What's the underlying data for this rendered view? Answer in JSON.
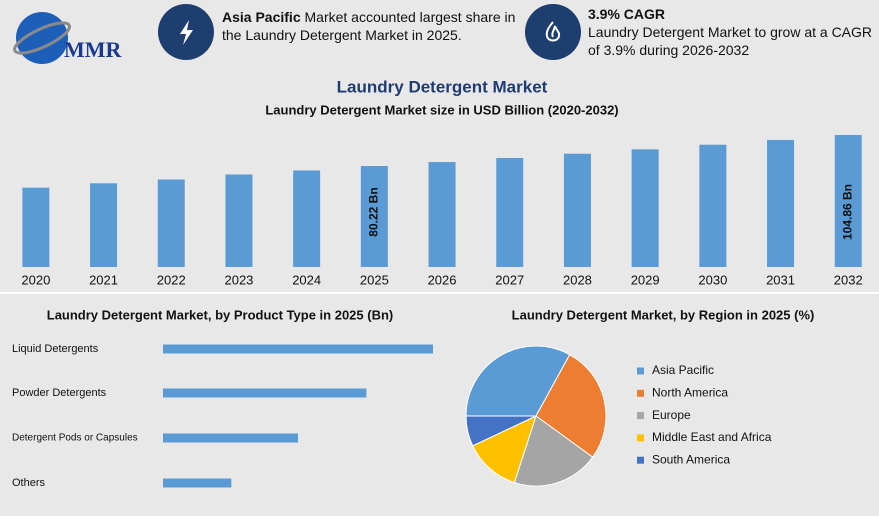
{
  "header": {
    "logo": "MMR",
    "box1": {
      "highlight": "Asia Pacific",
      "text": "Market accounted largest share in the Laundry Detergent Market in 2025."
    },
    "box2": {
      "title": "3.9% CAGR",
      "text": "Laundry Detergent Market to grow at a CAGR of 3.9% during 2026-2032"
    }
  },
  "title": "Laundry Detergent Market",
  "chart_data": [
    {
      "type": "bar",
      "title": "Laundry Detergent Market size in USD Billion (2020-2032)",
      "categories": [
        "2020",
        "2021",
        "2022",
        "2023",
        "2024",
        "2025",
        "2026",
        "2027",
        "2028",
        "2029",
        "2030",
        "2031",
        "2032"
      ],
      "values": [
        63,
        66.5,
        69.5,
        73.5,
        76.7,
        80.22,
        83.35,
        86.6,
        89.98,
        93.49,
        97.13,
        100.92,
        104.86
      ],
      "value_labels": [
        null,
        null,
        null,
        null,
        null,
        "80.22 Bn",
        null,
        null,
        null,
        null,
        null,
        null,
        "104.86 Bn"
      ],
      "color": "#5b9bd5"
    },
    {
      "type": "bar",
      "orientation": "horizontal",
      "title": "Laundry Detergent Market, by Product Type in 2025 (Bn)",
      "categories": [
        "Liquid Detergents",
        "Powder Detergents",
        "Detergent Pods or Capsules",
        "Others"
      ],
      "values": [
        32,
        24.1,
        16,
        8.1
      ],
      "color": "#5b9bd5"
    },
    {
      "type": "pie",
      "title": "Laundry Detergent Market, by Region in 2025 (%)",
      "categories": [
        "Asia Pacific",
        "North America",
        "Europe",
        "Middle East and Africa",
        "South America"
      ],
      "values": [
        33,
        27,
        20,
        13,
        7
      ],
      "colors": [
        "#5b9bd5",
        "#ed7d31",
        "#a5a5a5",
        "#ffc000",
        "#4472c4"
      ]
    }
  ]
}
